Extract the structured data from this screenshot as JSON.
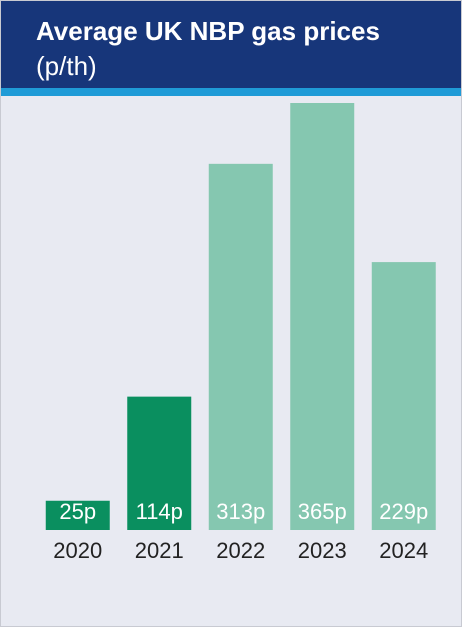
{
  "chart_data": {
    "type": "bar",
    "title": "Average UK NBP gas prices",
    "subtitle": "(p/th)",
    "categories": [
      "2020",
      "2021",
      "2022",
      "2023",
      "2024"
    ],
    "values": [
      25,
      114,
      313,
      365,
      229
    ],
    "value_labels": [
      "25p",
      "114p",
      "313p",
      "365p",
      "229p"
    ],
    "colors": [
      "#0a8f5f",
      "#0a8f5f",
      "#85c7b0",
      "#85c7b0",
      "#85c7b0"
    ]
  }
}
